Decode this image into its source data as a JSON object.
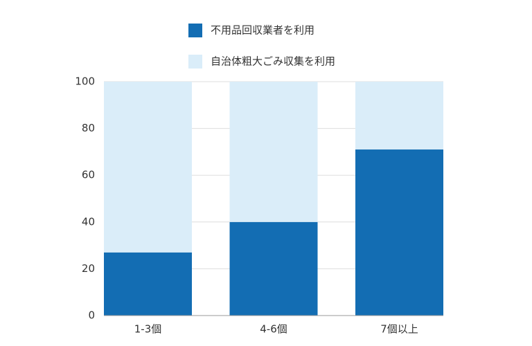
{
  "chart_data": {
    "type": "stacked_bar",
    "categories": [
      "1-3個",
      "4-6個",
      "7個以上"
    ],
    "series": [
      {
        "name": "不用品回収業者を利用",
        "color": "#136db3",
        "values": [
          27,
          40,
          71
        ]
      },
      {
        "name": "自治体粗大ごみ収集を利用",
        "color": "#daedf9",
        "values": [
          73,
          60,
          29
        ]
      }
    ],
    "ylim": [
      0,
      100
    ],
    "yticks": [
      0,
      20,
      40,
      60,
      80,
      100
    ],
    "grid": true
  }
}
